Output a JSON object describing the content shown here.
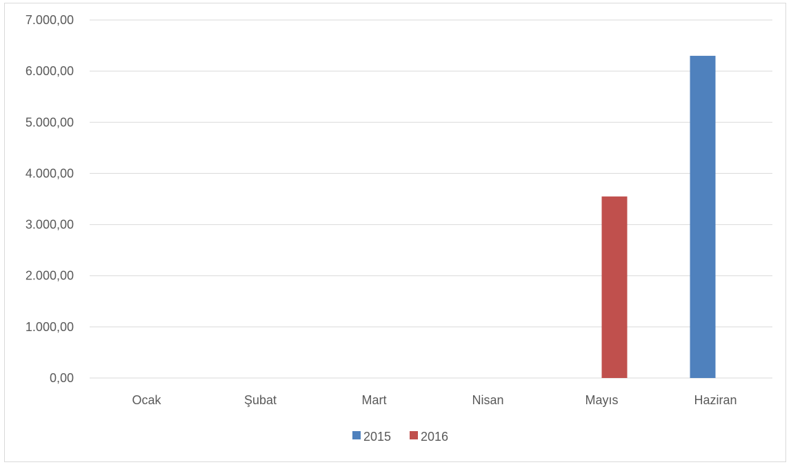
{
  "chart_data": {
    "type": "bar",
    "title": "",
    "xlabel": "",
    "ylabel": "",
    "categories": [
      "Ocak",
      "Şubat",
      "Mart",
      "Nisan",
      "Mayıs",
      "Haziran"
    ],
    "series": [
      {
        "name": "2015",
        "color": "#4f81bd",
        "values": [
          0,
          0,
          0,
          0,
          0,
          6300
        ]
      },
      {
        "name": "2016",
        "color": "#c0504d",
        "values": [
          0,
          0,
          0,
          0,
          3550,
          0
        ]
      }
    ],
    "ylim": [
      0,
      7000
    ],
    "y_ticks": [
      0,
      1000,
      2000,
      3000,
      4000,
      5000,
      6000,
      7000
    ],
    "y_tick_labels": [
      "0,00",
      "1.000,00",
      "2.000,00",
      "3.000,00",
      "4.000,00",
      "5.000,00",
      "6.000,00",
      "7.000,00"
    ],
    "grid": true,
    "legend_position": "bottom"
  }
}
